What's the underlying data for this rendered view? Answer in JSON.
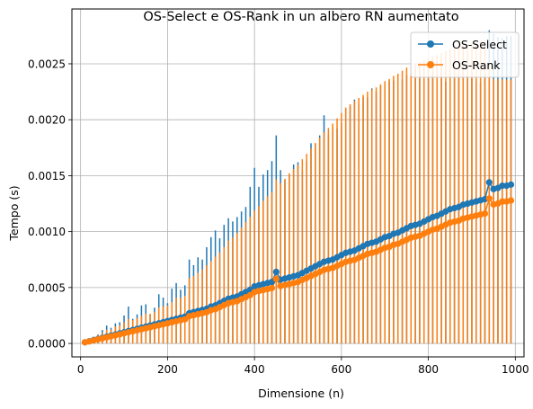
{
  "chart_data": {
    "type": "line",
    "title": "OS-Select e OS-Rank in un albero RN aumentato",
    "xlabel": "Dimensione (n)",
    "ylabel": "Tempo (s)",
    "xlim": [
      -20,
      1020
    ],
    "ylim": [
      -0.00012,
      0.00299
    ],
    "x_ticks": [
      0,
      200,
      400,
      600,
      800,
      1000
    ],
    "y_ticks": [
      0.0,
      0.0005,
      0.001,
      0.0015,
      0.002,
      0.0025
    ],
    "x_tick_labels": [
      "0",
      "200",
      "400",
      "600",
      "800",
      "1000"
    ],
    "y_tick_labels": [
      "0.0000",
      "0.0005",
      "0.0010",
      "0.0015",
      "0.0020",
      "0.0025"
    ],
    "grid": true,
    "legend_position": "top-right",
    "x": [
      10,
      20,
      30,
      40,
      50,
      60,
      70,
      80,
      90,
      100,
      110,
      120,
      130,
      140,
      150,
      160,
      170,
      180,
      190,
      200,
      210,
      220,
      230,
      240,
      250,
      260,
      270,
      280,
      290,
      300,
      310,
      320,
      330,
      340,
      350,
      360,
      370,
      380,
      390,
      400,
      410,
      420,
      430,
      440,
      450,
      460,
      470,
      480,
      490,
      500,
      510,
      520,
      530,
      540,
      550,
      560,
      570,
      580,
      590,
      600,
      610,
      620,
      630,
      640,
      650,
      660,
      670,
      680,
      690,
      700,
      710,
      720,
      730,
      740,
      750,
      760,
      770,
      780,
      790,
      800,
      810,
      820,
      830,
      840,
      850,
      860,
      870,
      880,
      890,
      900,
      910,
      920,
      930,
      940,
      950,
      960,
      970,
      980,
      990
    ],
    "series": [
      {
        "name": "OS-Select",
        "color": "#1f77b4",
        "values": [
          1e-05,
          2e-05,
          3e-05,
          4e-05,
          5e-05,
          6e-05,
          7e-05,
          8e-05,
          9e-05,
          0.0001,
          0.00011,
          0.00012,
          0.00013,
          0.00014,
          0.00015,
          0.00016,
          0.00017,
          0.00018,
          0.00019,
          0.0002,
          0.00021,
          0.00022,
          0.00023,
          0.00024,
          0.00027,
          0.00028,
          0.00029,
          0.0003,
          0.00031,
          0.00033,
          0.00034,
          0.00036,
          0.00038,
          0.0004,
          0.00041,
          0.00042,
          0.00044,
          0.00046,
          0.00048,
          0.00051,
          0.00052,
          0.00053,
          0.00054,
          0.00055,
          0.00064,
          0.00057,
          0.00058,
          0.00059,
          0.0006,
          0.00061,
          0.00063,
          0.00065,
          0.00067,
          0.00069,
          0.00071,
          0.00073,
          0.00074,
          0.00075,
          0.00077,
          0.00079,
          0.00081,
          0.00082,
          0.00083,
          0.00085,
          0.00087,
          0.00089,
          0.0009,
          0.00091,
          0.00093,
          0.00095,
          0.00096,
          0.00098,
          0.00099,
          0.00101,
          0.00103,
          0.00105,
          0.00106,
          0.00107,
          0.00109,
          0.00111,
          0.00113,
          0.00114,
          0.00116,
          0.00118,
          0.0012,
          0.00121,
          0.00122,
          0.00124,
          0.00125,
          0.00126,
          0.00127,
          0.00128,
          0.00129,
          0.00144,
          0.00138,
          0.00139,
          0.00141,
          0.00141,
          0.00142
        ],
        "err_upper": [
          1e-05,
          2e-05,
          3e-05,
          4e-05,
          7e-05,
          0.0001,
          7e-05,
          0.0001,
          0.0001,
          0.00015,
          0.00022,
          0.0001,
          0.00013,
          0.0002,
          0.0002,
          0.0001,
          0.00015,
          0.00026,
          0.00022,
          0.00016,
          0.00028,
          0.00032,
          0.00025,
          0.00028,
          0.00048,
          0.00042,
          0.00048,
          0.00045,
          0.00055,
          0.00062,
          0.00067,
          0.00058,
          0.00068,
          0.00072,
          0.00068,
          0.00071,
          0.00074,
          0.00076,
          0.00092,
          0.00106,
          0.00088,
          0.00098,
          0.00101,
          0.00108,
          0.00122,
          0.00098,
          0.00088,
          0.00092,
          0.001,
          0.00101,
          0.00092,
          0.00098,
          0.00112,
          0.0011,
          0.00115,
          0.00131,
          0.00112,
          0.00118,
          0.00115,
          0.00118,
          0.00129,
          0.0013,
          0.00135,
          0.00129,
          0.00133,
          0.00131,
          0.00138,
          0.00134,
          0.00137,
          0.00136,
          0.00139,
          0.00137,
          0.00139,
          0.00135,
          0.00137,
          0.00136,
          0.00139,
          0.0014,
          0.00141,
          0.00139,
          0.00129,
          0.00123,
          0.00127,
          0.00116,
          0.00118,
          0.00119,
          0.00117,
          0.00116,
          0.00115,
          0.00113,
          0.00107,
          0.00105,
          0.00111,
          0.00136,
          0.00139,
          0.00135,
          0.00132,
          0.00134,
          0.00133
        ],
        "err_lower": [
          1e-05,
          2e-05,
          3e-05,
          4e-05,
          5e-05,
          6e-05,
          7e-05,
          8e-05,
          9e-05,
          0.0001,
          0.00011,
          0.00012,
          0.00013,
          0.00014,
          0.00015,
          0.00016,
          0.00017,
          0.00018,
          0.00019,
          0.0002,
          0.00021,
          0.00022,
          0.00023,
          0.00024,
          0.00027,
          0.00028,
          0.00029,
          0.0003,
          0.00031,
          0.00033,
          0.00034,
          0.00036,
          0.00038,
          0.0004,
          0.00041,
          0.00042,
          0.00044,
          0.00046,
          0.00048,
          0.00051,
          0.00052,
          0.00053,
          0.00054,
          0.00055,
          0.00064,
          0.00057,
          0.00058,
          0.00059,
          0.0006,
          0.00061,
          0.00063,
          0.00065,
          0.00067,
          0.00069,
          0.00071,
          0.00073,
          0.00074,
          0.00075,
          0.00077,
          0.00079,
          0.00081,
          0.00082,
          0.00083,
          0.00085,
          0.00087,
          0.00089,
          0.0009,
          0.00091,
          0.00093,
          0.00095,
          0.00096,
          0.00098,
          0.00099,
          0.00101,
          0.00103,
          0.00105,
          0.00106,
          0.00107,
          0.00109,
          0.00111,
          0.00113,
          0.00114,
          0.00116,
          0.00118,
          0.0012,
          0.00121,
          0.00122,
          0.00124,
          0.00125,
          0.00126,
          0.00127,
          0.00128,
          0.00129,
          0.00144,
          0.00138,
          0.00139,
          0.00141,
          0.00141,
          0.00142
        ]
      },
      {
        "name": "OS-Rank",
        "color": "#ff7f0e",
        "values": [
          1e-05,
          1.8e-05,
          2.7e-05,
          3.6e-05,
          4.5e-05,
          5.4e-05,
          6.3e-05,
          7.2e-05,
          8.1e-05,
          9e-05,
          9.9e-05,
          0.000108,
          0.000117,
          0.000126,
          0.000135,
          0.000144,
          0.000153,
          0.000162,
          0.000171,
          0.00018,
          0.000189,
          0.000198,
          0.000207,
          0.000216,
          0.000243,
          0.000252,
          0.000261,
          0.00027,
          0.000279,
          0.000297,
          0.000306,
          0.000324,
          0.000342,
          0.00036,
          0.000369,
          0.000378,
          0.000396,
          0.000414,
          0.000432,
          0.000459,
          0.000468,
          0.000477,
          0.000486,
          0.000495,
          0.000576,
          0.000513,
          0.000522,
          0.000531,
          0.00054,
          0.000549,
          0.000567,
          0.000585,
          0.000603,
          0.000621,
          0.000639,
          0.000657,
          0.000666,
          0.000675,
          0.000693,
          0.000711,
          0.000729,
          0.000738,
          0.000747,
          0.000765,
          0.000783,
          0.000801,
          0.00081,
          0.000819,
          0.000837,
          0.000855,
          0.000864,
          0.000882,
          0.000891,
          0.000909,
          0.000927,
          0.000945,
          0.000954,
          0.000963,
          0.000981,
          0.000999,
          0.001017,
          0.001026,
          0.001044,
          0.001062,
          0.00108,
          0.001089,
          0.001098,
          0.001116,
          0.001125,
          0.001134,
          0.001143,
          0.001152,
          0.001161,
          0.001296,
          0.001242,
          0.001251,
          0.001269,
          0.001269,
          0.001278
        ],
        "err_upper": [
          1e-05,
          2e-05,
          3e-05,
          4e-05,
          5e-05,
          7e-05,
          6e-05,
          8e-05,
          8e-05,
          0.0001,
          0.00012,
          0.0001,
          0.00011,
          0.00012,
          0.00013,
          0.00012,
          0.00013,
          0.00016,
          0.00016,
          0.00016,
          0.00018,
          0.00021,
          0.0002,
          0.00021,
          0.00034,
          0.00035,
          0.00037,
          0.00039,
          0.00042,
          0.00044,
          0.00047,
          0.00049,
          0.00052,
          0.00056,
          0.00058,
          0.00061,
          0.00064,
          0.00067,
          0.0007,
          0.00073,
          0.00076,
          0.0008,
          0.00083,
          0.00086,
          0.00089,
          0.00092,
          0.00095,
          0.00099,
          0.00102,
          0.00105,
          0.00108,
          0.00111,
          0.00114,
          0.00117,
          0.0012,
          0.00123,
          0.00126,
          0.00129,
          0.00132,
          0.00135,
          0.00138,
          0.0014,
          0.00142,
          0.00143,
          0.00144,
          0.00145,
          0.00146,
          0.00147,
          0.00148,
          0.00149,
          0.0015,
          0.00151,
          0.00152,
          0.00153,
          0.00154,
          0.00154,
          0.00155,
          0.00155,
          0.00155,
          0.00155,
          0.00155,
          0.00155,
          0.00155,
          0.00155,
          0.00155,
          0.00155,
          0.00155,
          0.00155,
          0.00155,
          0.00155,
          0.00155,
          0.00155,
          0.00155,
          0.0012,
          0.00112,
          0.00111,
          0.00109,
          0.00109,
          0.00108
        ],
        "err_lower": [
          1e-05,
          1.8e-05,
          2.7e-05,
          3.6e-05,
          4.5e-05,
          5.4e-05,
          6.3e-05,
          7.2e-05,
          8.1e-05,
          9e-05,
          9.9e-05,
          0.000108,
          0.000117,
          0.000126,
          0.000135,
          0.000144,
          0.000153,
          0.000162,
          0.000171,
          0.00018,
          0.000189,
          0.000198,
          0.000207,
          0.000216,
          0.000243,
          0.000252,
          0.000261,
          0.00027,
          0.000279,
          0.000297,
          0.000306,
          0.000324,
          0.000342,
          0.00036,
          0.000369,
          0.000378,
          0.000396,
          0.000414,
          0.000432,
          0.000459,
          0.000468,
          0.000477,
          0.000486,
          0.000495,
          0.000576,
          0.000513,
          0.000522,
          0.000531,
          0.00054,
          0.000549,
          0.000567,
          0.000585,
          0.000603,
          0.000621,
          0.000639,
          0.000657,
          0.000666,
          0.000675,
          0.000693,
          0.000711,
          0.000729,
          0.000738,
          0.000747,
          0.000765,
          0.000783,
          0.000801,
          0.00081,
          0.000819,
          0.000837,
          0.000855,
          0.000864,
          0.000882,
          0.000891,
          0.000909,
          0.000927,
          0.000945,
          0.000954,
          0.000963,
          0.000981,
          0.000999,
          0.001017,
          0.001026,
          0.001044,
          0.001062,
          0.00108,
          0.001089,
          0.001098,
          0.001116,
          0.001125,
          0.001134,
          0.001143,
          0.001152,
          0.001161,
          0.001296,
          0.001242,
          0.001251,
          0.001269,
          0.001269,
          0.001278
        ]
      }
    ]
  }
}
